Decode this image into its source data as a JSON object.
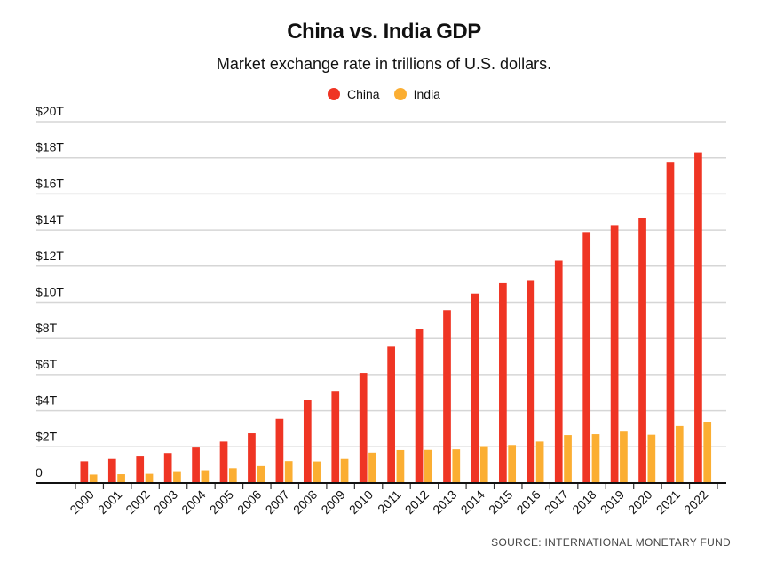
{
  "chart_data": {
    "type": "bar",
    "title": "China vs. India GDP",
    "subtitle": "Market exchange rate in trillions of U.S. dollars.",
    "source": "SOURCE: INTERNATIONAL MONETARY FUND",
    "categories": [
      "2000",
      "2001",
      "2002",
      "2003",
      "2004",
      "2005",
      "2006",
      "2007",
      "2008",
      "2009",
      "2010",
      "2011",
      "2012",
      "2013",
      "2014",
      "2015",
      "2016",
      "2017",
      "2018",
      "2019",
      "2020",
      "2021",
      "2022"
    ],
    "series": [
      {
        "name": "China",
        "color": "#ef3524",
        "values": [
          1.21,
          1.34,
          1.47,
          1.66,
          1.96,
          2.29,
          2.75,
          3.55,
          4.59,
          5.1,
          6.09,
          7.55,
          8.53,
          9.57,
          10.48,
          11.06,
          11.23,
          12.31,
          13.89,
          14.28,
          14.69,
          17.73,
          18.3
        ]
      },
      {
        "name": "India",
        "color": "#fbae32",
        "values": [
          0.47,
          0.49,
          0.51,
          0.61,
          0.71,
          0.82,
          0.94,
          1.22,
          1.2,
          1.34,
          1.68,
          1.82,
          1.83,
          1.86,
          2.04,
          2.1,
          2.29,
          2.65,
          2.7,
          2.84,
          2.67,
          3.15,
          3.39
        ]
      }
    ],
    "yticks": [
      0,
      2,
      4,
      6,
      8,
      10,
      12,
      14,
      16,
      18,
      20
    ],
    "ytick_labels": [
      "0",
      "$2T",
      "$4T",
      "$6T",
      "$8T",
      "$10T",
      "$12T",
      "$14T",
      "$16T",
      "$18T",
      "$20T"
    ],
    "ylim": [
      0,
      20
    ],
    "grid": true,
    "legend_position": "top-center"
  }
}
